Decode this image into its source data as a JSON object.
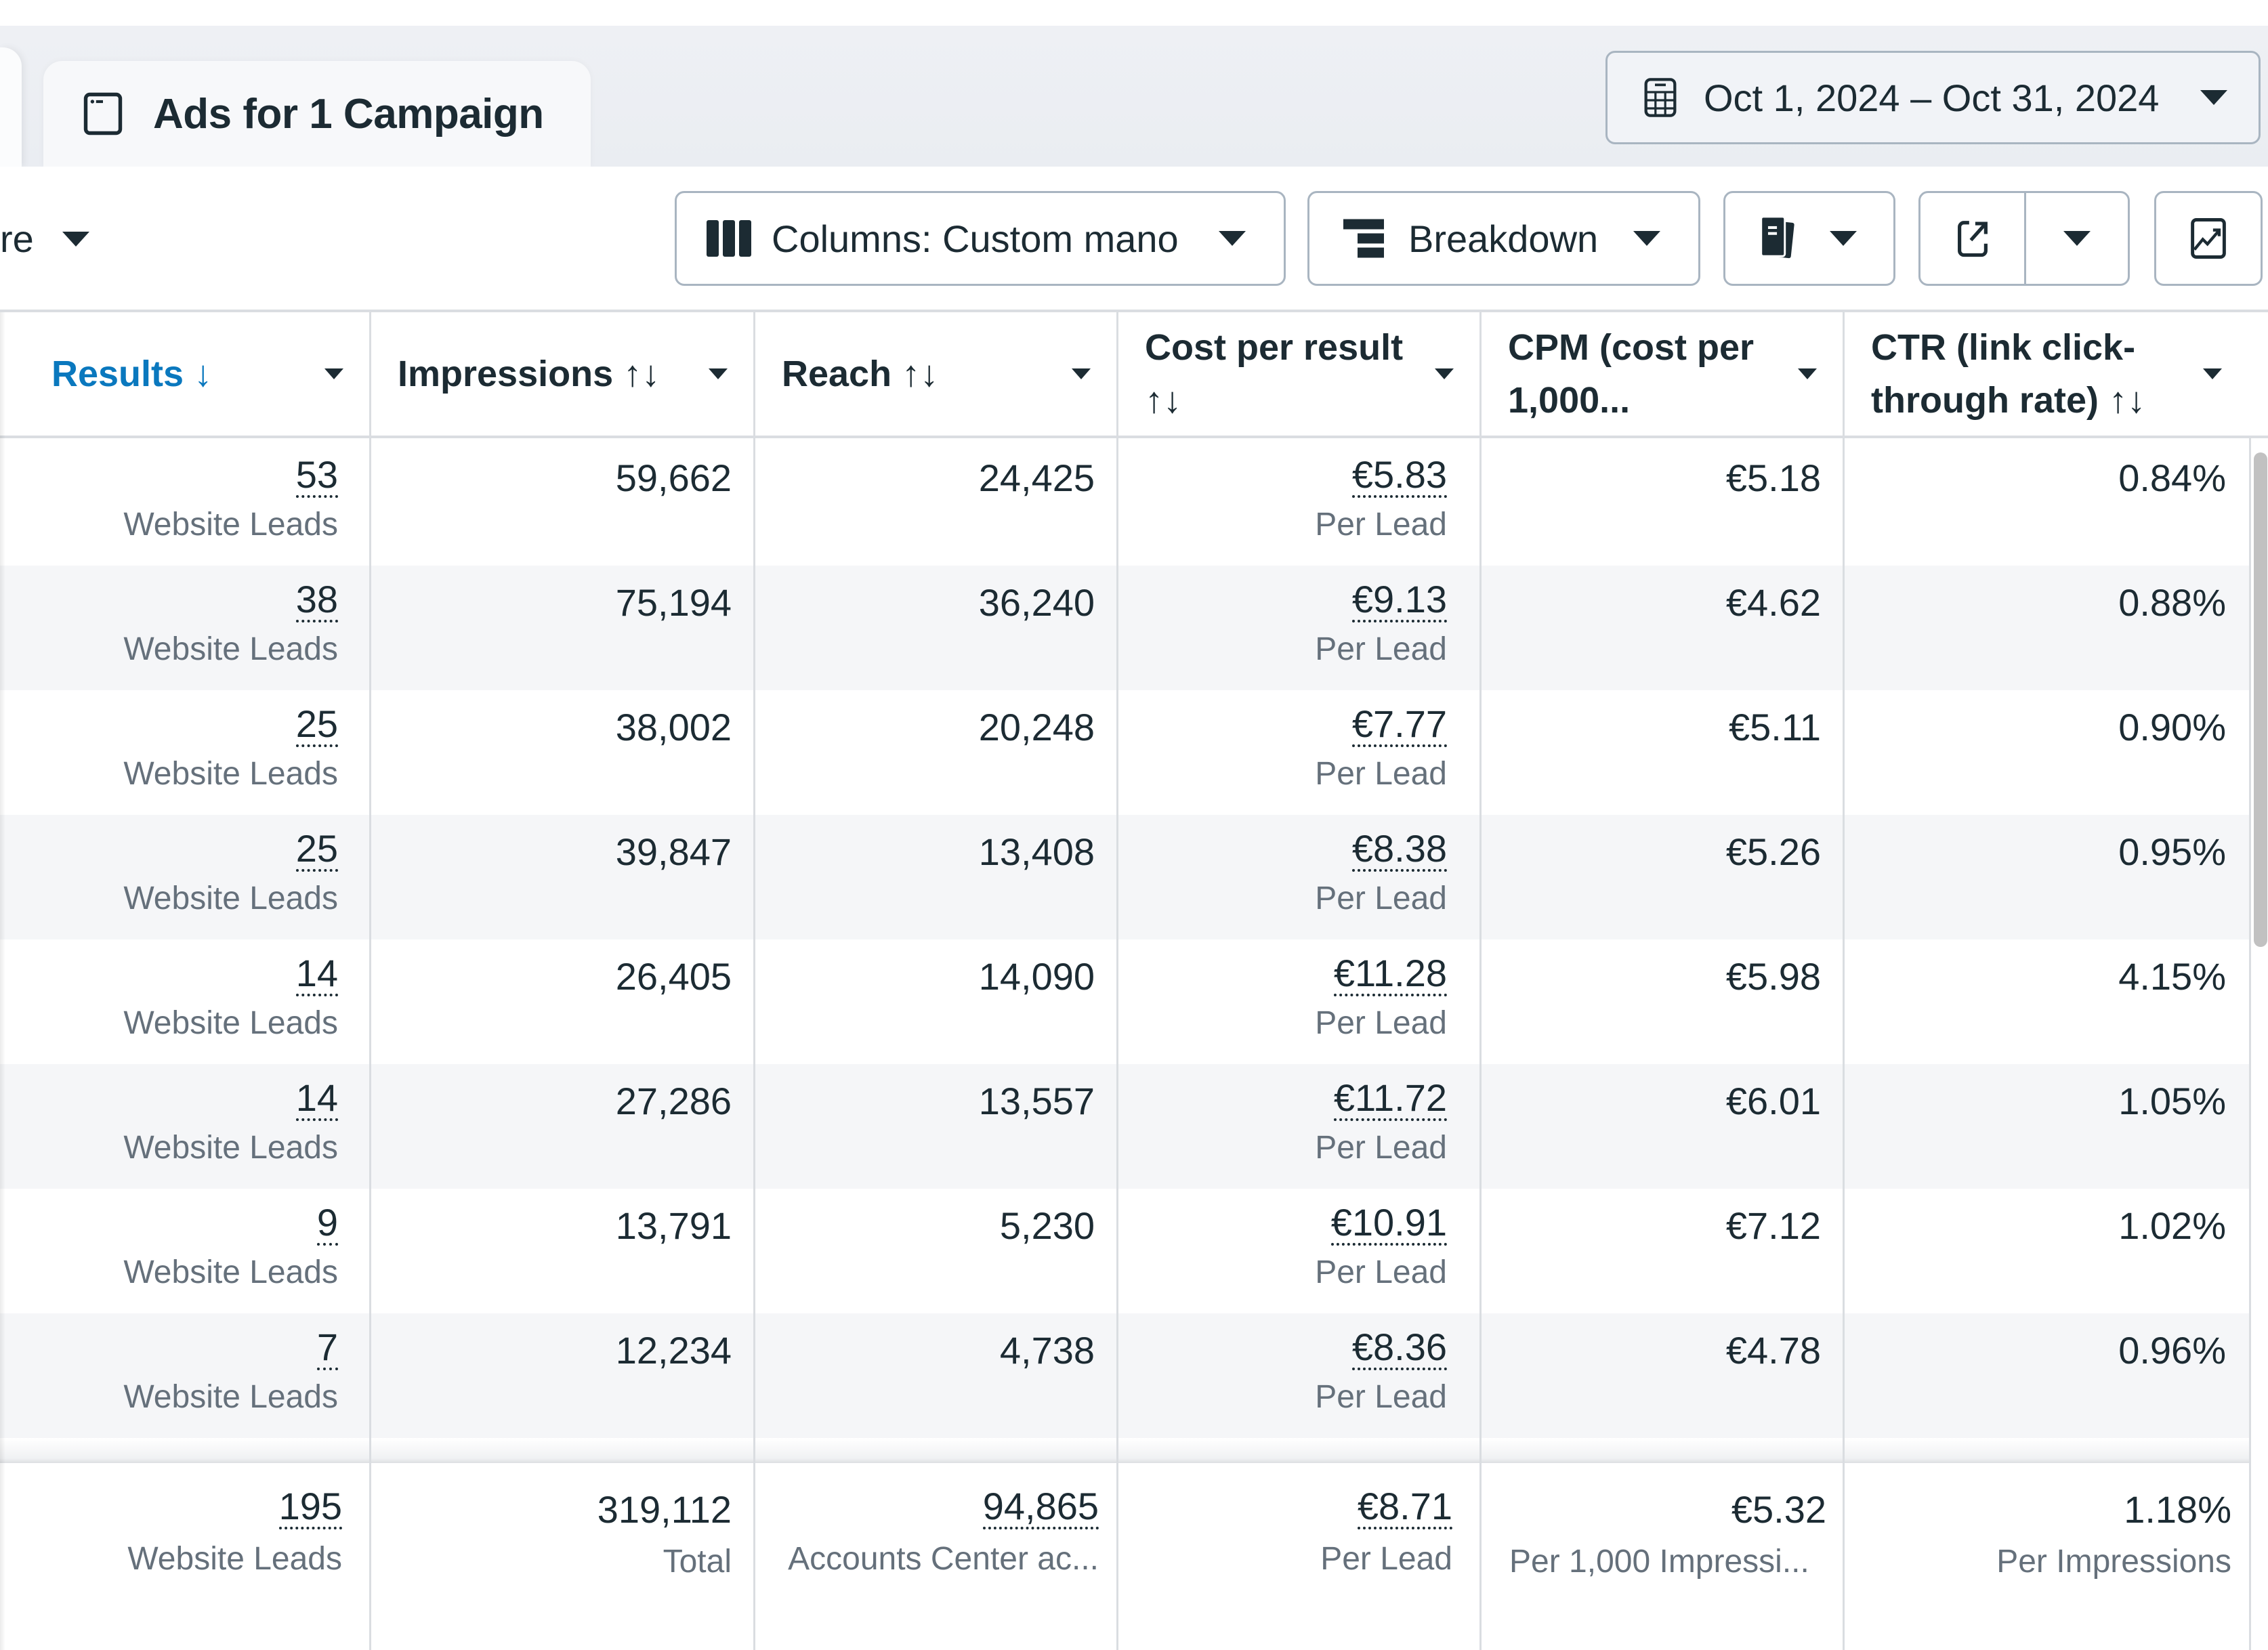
{
  "tab": {
    "title": "Ads for 1 Campaign",
    "icon": "browser-window-icon"
  },
  "date_range": {
    "label": "Oct 1, 2024 – Oct 31, 2024",
    "icon": "calendar-icon"
  },
  "toolbar": {
    "filter_fragment": "re",
    "columns_label": "Columns: Custom mano",
    "breakdown_label": "Breakdown",
    "reports_icon": "reports-icon",
    "export_icon": "export-icon",
    "chart_icon": "chart-trend-icon"
  },
  "table": {
    "columns": [
      {
        "key": "results",
        "label": "Results",
        "sort": "↓",
        "active": true
      },
      {
        "key": "impressions",
        "label": "Impressions",
        "sort": "↑↓"
      },
      {
        "key": "reach",
        "label": "Reach",
        "sort": "↑↓"
      },
      {
        "key": "cost_per_result",
        "label": "Cost per result",
        "sort": "↑↓"
      },
      {
        "key": "cpm",
        "label": "CPM (cost per 1,000...",
        "sort": ""
      },
      {
        "key": "ctr",
        "label": "CTR (link click-through rate)",
        "sort": "↑↓"
      }
    ],
    "rows": [
      {
        "results": "53",
        "results_sub": "Website Leads",
        "impressions": "59,662",
        "reach": "24,425",
        "cost_per_result": "€5.83",
        "cost_sub": "Per Lead",
        "cpm": "€5.18",
        "ctr": "0.84%"
      },
      {
        "results": "38",
        "results_sub": "Website Leads",
        "impressions": "75,194",
        "reach": "36,240",
        "cost_per_result": "€9.13",
        "cost_sub": "Per Lead",
        "cpm": "€4.62",
        "ctr": "0.88%"
      },
      {
        "results": "25",
        "results_sub": "Website Leads",
        "impressions": "38,002",
        "reach": "20,248",
        "cost_per_result": "€7.77",
        "cost_sub": "Per Lead",
        "cpm": "€5.11",
        "ctr": "0.90%"
      },
      {
        "results": "25",
        "results_sub": "Website Leads",
        "impressions": "39,847",
        "reach": "13,408",
        "cost_per_result": "€8.38",
        "cost_sub": "Per Lead",
        "cpm": "€5.26",
        "ctr": "0.95%"
      },
      {
        "results": "14",
        "results_sub": "Website Leads",
        "impressions": "26,405",
        "reach": "14,090",
        "cost_per_result": "€11.28",
        "cost_sub": "Per Lead",
        "cpm": "€5.98",
        "ctr": "4.15%"
      },
      {
        "results": "14",
        "results_sub": "Website Leads",
        "impressions": "27,286",
        "reach": "13,557",
        "cost_per_result": "€11.72",
        "cost_sub": "Per Lead",
        "cpm": "€6.01",
        "ctr": "1.05%"
      },
      {
        "results": "9",
        "results_sub": "Website Leads",
        "impressions": "13,791",
        "reach": "5,230",
        "cost_per_result": "€10.91",
        "cost_sub": "Per Lead",
        "cpm": "€7.12",
        "ctr": "1.02%"
      },
      {
        "results": "7",
        "results_sub": "Website Leads",
        "impressions": "12,234",
        "reach": "4,738",
        "cost_per_result": "€8.36",
        "cost_sub": "Per Lead",
        "cpm": "€4.78",
        "ctr": "0.96%"
      }
    ],
    "totals": {
      "results": "195",
      "results_sub": "Website Leads",
      "impressions": "319,112",
      "impressions_sub": "Total",
      "reach": "94,865",
      "reach_sub": "Accounts Center ac...",
      "cost_per_result": "€8.71",
      "cost_sub": "Per Lead",
      "cpm": "€5.32",
      "cpm_sub": "Per 1,000 Impressi...",
      "ctr": "1.18%",
      "ctr_sub": "Per Impressions"
    }
  },
  "colors": {
    "accent": "#0a78be",
    "text": "#1c2b33",
    "muted": "#65707b",
    "border": "#dadde1",
    "row_alt": "#f5f6f8"
  }
}
